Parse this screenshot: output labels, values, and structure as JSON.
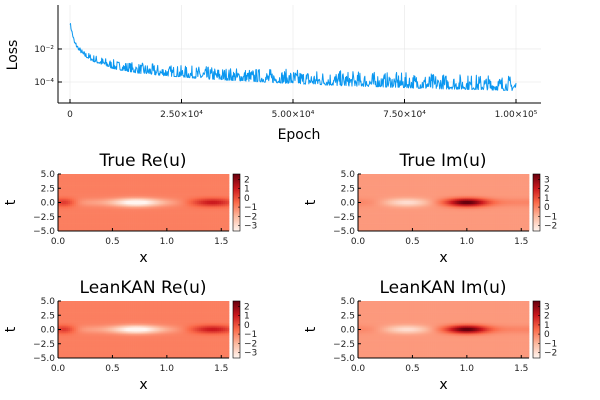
{
  "chart_data": [
    {
      "type": "line",
      "xlabel": "Epoch",
      "ylabel": "Loss",
      "yscale": "log",
      "grid": true,
      "legend": "none",
      "xlim": [
        0,
        100000
      ],
      "ylim": [
        1e-05,
        0.1
      ],
      "x_ticks": [
        {
          "v": 0,
          "label": "0"
        },
        {
          "v": 25000,
          "label": "2.50×10⁴"
        },
        {
          "v": 50000,
          "label": "5.00×10⁴"
        },
        {
          "v": 75000,
          "label": "7.50×10⁴"
        },
        {
          "v": 100000,
          "label": "1.00×10⁵"
        }
      ],
      "y_ticks": [
        {
          "v": 0.0001,
          "label": "10⁻⁴"
        },
        {
          "v": 0.01,
          "label": "10⁻²"
        }
      ],
      "series": [
        {
          "color": "#0a97f0",
          "x": [
            0,
            1000,
            2000,
            3000,
            5000,
            8000,
            10000,
            15000,
            20000,
            25000,
            30000,
            40000,
            50000,
            60000,
            70000,
            80000,
            90000,
            100000
          ],
          "y_low": [
            0.3,
            0.02,
            0.008,
            0.004,
            0.0018,
            0.0009,
            0.0006,
            0.00035,
            0.00025,
            0.0002,
            0.00015,
            0.00011,
            8e-05,
            6e-05,
            5e-05,
            4e-05,
            3.5e-05,
            3e-05
          ],
          "y_high": [
            0.5,
            0.04,
            0.015,
            0.008,
            0.005,
            0.003,
            0.0022,
            0.0015,
            0.0012,
            0.001,
            0.0009,
            0.0007,
            0.0006,
            0.0005,
            0.0004,
            0.00035,
            0.0003,
            0.00025
          ]
        }
      ]
    },
    {
      "type": "heatmap",
      "title": "True Re(u)",
      "xlabel": "x",
      "ylabel": "t",
      "colormap": "Reds",
      "xlim": [
        0,
        1.571
      ],
      "ylim": [
        -5,
        5
      ],
      "x_ticks": [
        "0.0",
        "0.5",
        "1.0",
        "1.5"
      ],
      "y_ticks": [
        "5.0",
        "2.5",
        "0.0",
        "−2.5",
        "−5.0"
      ],
      "clim": [
        -3.6,
        2.6
      ],
      "cbar_ticks": [
        {
          "v": 2,
          "label": "2"
        },
        {
          "v": 1,
          "label": "1"
        },
        {
          "v": 0,
          "label": "0"
        },
        {
          "v": -1,
          "label": "−1"
        },
        {
          "v": -2,
          "label": "−2"
        },
        {
          "v": -3,
          "label": "−3"
        }
      ],
      "field": "re"
    },
    {
      "type": "heatmap",
      "title": "True Im(u)",
      "xlabel": "x",
      "ylabel": "t",
      "colormap": "Reds",
      "xlim": [
        0,
        1.571
      ],
      "ylim": [
        -5,
        5
      ],
      "x_ticks": [
        "0.0",
        "0.5",
        "1.0",
        "1.5"
      ],
      "y_ticks": [
        "5.0",
        "2.5",
        "0.0",
        "−2.5",
        "−5.0"
      ],
      "clim": [
        -2.6,
        3.6
      ],
      "cbar_ticks": [
        {
          "v": 3,
          "label": "3"
        },
        {
          "v": 2,
          "label": "2"
        },
        {
          "v": 1,
          "label": "1"
        },
        {
          "v": 0,
          "label": "0"
        },
        {
          "v": -1,
          "label": "−1"
        },
        {
          "v": -2,
          "label": "−2"
        }
      ],
      "field": "im"
    },
    {
      "type": "heatmap",
      "title": "LeanKAN Re(u)",
      "xlabel": "x",
      "ylabel": "t",
      "colormap": "Reds",
      "xlim": [
        0,
        1.571
      ],
      "ylim": [
        -5,
        5
      ],
      "x_ticks": [
        "0.0",
        "0.5",
        "1.0",
        "1.5"
      ],
      "y_ticks": [
        "5.0",
        "2.5",
        "0.0",
        "−2.5",
        "−5.0"
      ],
      "clim": [
        -3.6,
        2.6
      ],
      "cbar_ticks": [
        {
          "v": 2,
          "label": "2"
        },
        {
          "v": 1,
          "label": "1"
        },
        {
          "v": 0,
          "label": "0"
        },
        {
          "v": -1,
          "label": "−1"
        },
        {
          "v": -2,
          "label": "−2"
        },
        {
          "v": -3,
          "label": "−3"
        }
      ],
      "field": "re"
    },
    {
      "type": "heatmap",
      "title": "LeanKAN Im(u)",
      "xlabel": "x",
      "ylabel": "t",
      "colormap": "Reds",
      "xlim": [
        0,
        1.571
      ],
      "ylim": [
        -5,
        5
      ],
      "x_ticks": [
        "0.0",
        "0.5",
        "1.0",
        "1.5"
      ],
      "y_ticks": [
        "5.0",
        "2.5",
        "0.0",
        "−2.5",
        "−5.0"
      ],
      "clim": [
        -2.6,
        3.6
      ],
      "cbar_ticks": [
        {
          "v": 3,
          "label": "3"
        },
        {
          "v": 2,
          "label": "2"
        },
        {
          "v": 1,
          "label": "1"
        },
        {
          "v": 0,
          "label": "0"
        },
        {
          "v": -1,
          "label": "−1"
        },
        {
          "v": -2,
          "label": "−2"
        }
      ],
      "field": "im"
    }
  ]
}
